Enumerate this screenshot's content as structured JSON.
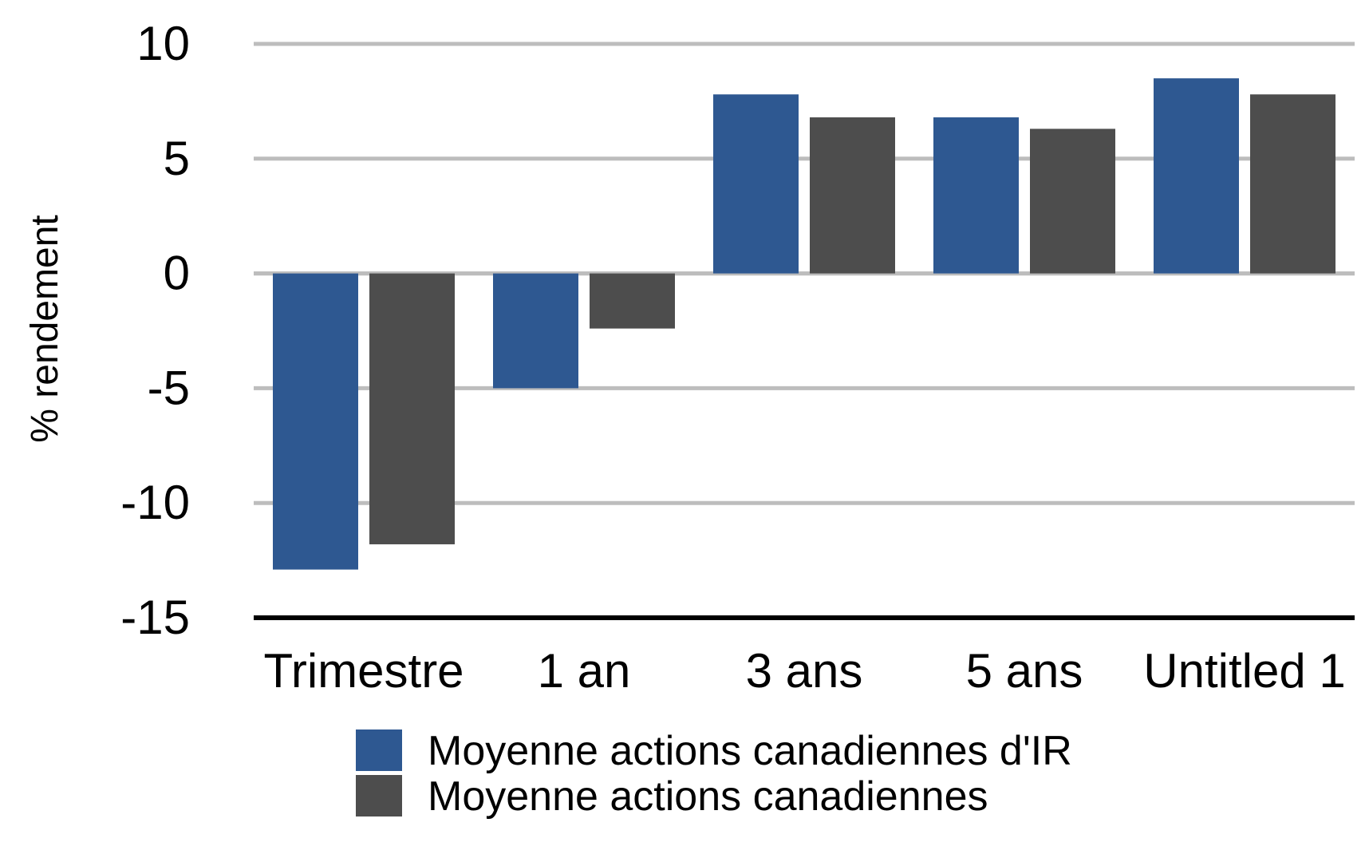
{
  "chart_data": {
    "type": "bar",
    "title": "",
    "xlabel": "",
    "ylabel": "% rendement",
    "categories": [
      "Trimestre",
      "1 an",
      "3 ans",
      "5 ans",
      "Untitled 1"
    ],
    "series": [
      {
        "name": "Moyenne actions canadiennes d'IR",
        "color": "#2e5891",
        "values": [
          -12.9,
          -5.0,
          7.8,
          6.8,
          8.5
        ]
      },
      {
        "name": "Moyenne actions canadiennes",
        "color": "#4d4d4d",
        "values": [
          -11.8,
          -2.4,
          6.8,
          6.3,
          7.8
        ]
      }
    ],
    "ylim": [
      -15,
      10
    ],
    "yticks": [
      10,
      5,
      0,
      -5,
      -10,
      -15
    ],
    "grid": true,
    "gridColor": "#bdbdbd",
    "baselineColor": "#000000",
    "legend_position": "bottom"
  }
}
